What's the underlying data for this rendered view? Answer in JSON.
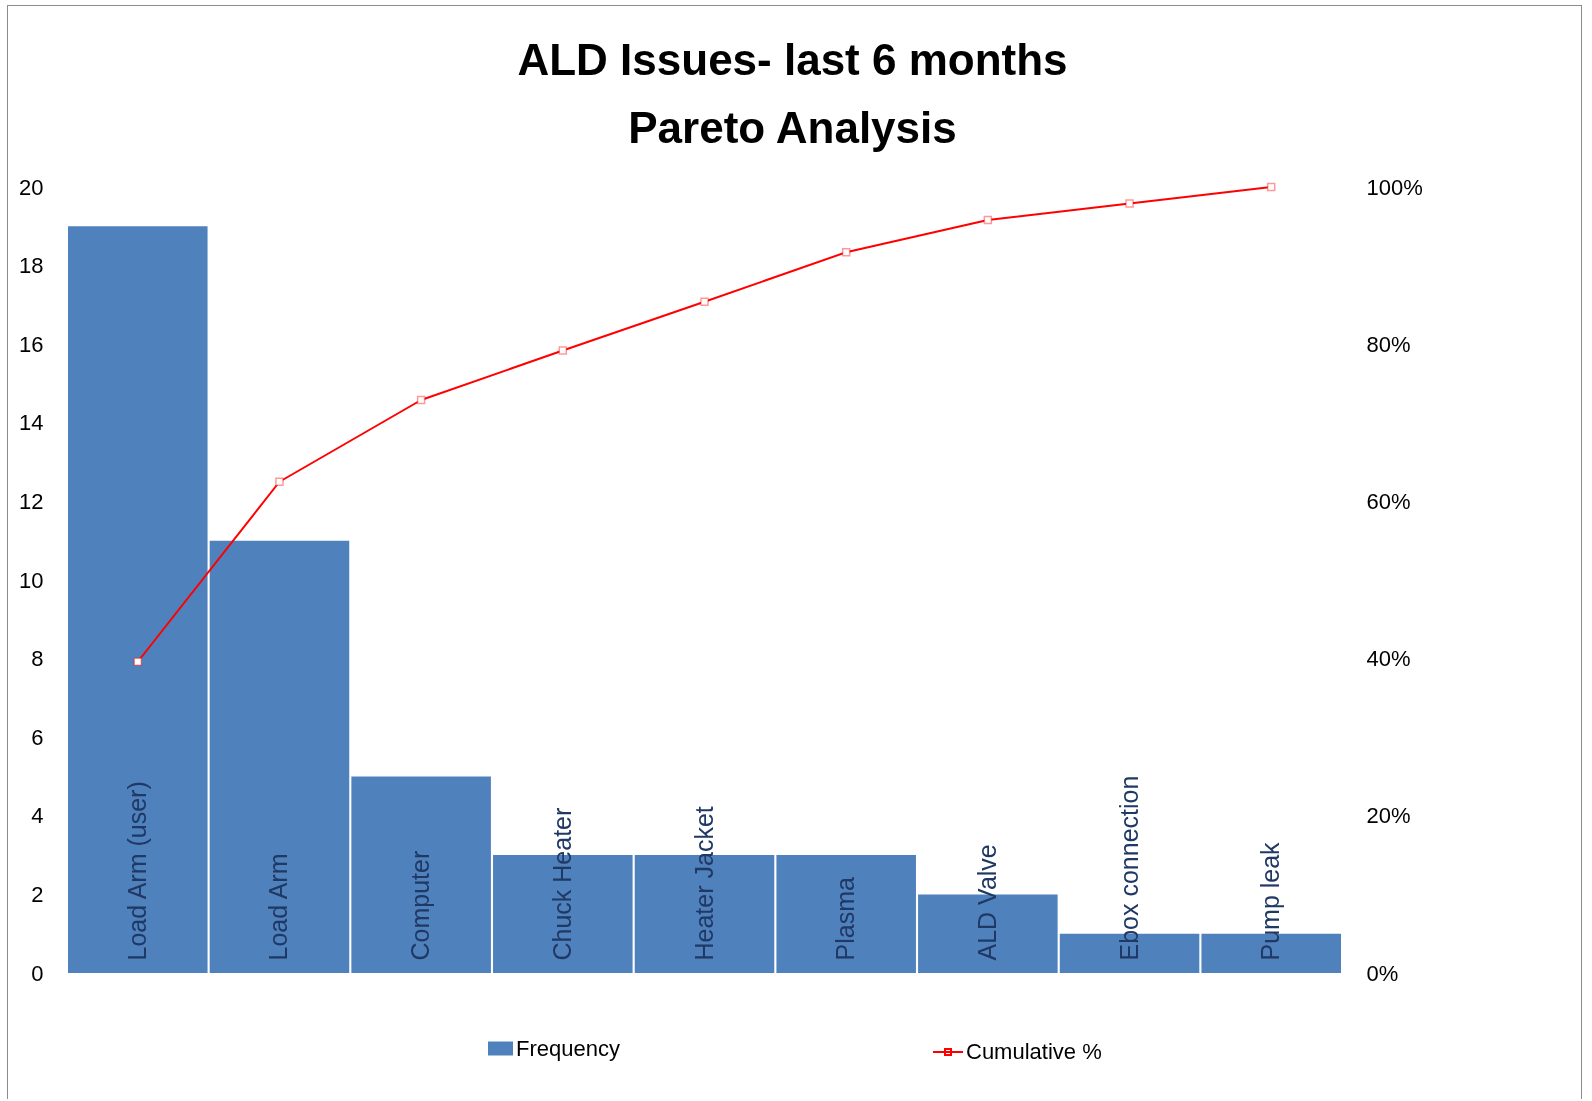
{
  "chart_data": {
    "type": "bar",
    "title": "ALD Issues- last 6 months\nPareto Analysis",
    "categories": [
      "Load Arm (user)",
      "Load Arm",
      "Computer",
      "Chuck Heater",
      "Heater Jacket",
      "Plasma",
      "ALD Valve",
      "Ebox connection",
      "Pump leak"
    ],
    "series": [
      {
        "name": "Frequency",
        "color": "#4f81bd",
        "values": [
          19,
          11,
          5,
          3,
          3,
          3,
          2,
          1,
          1
        ]
      },
      {
        "name": "Cumulative %",
        "type": "line",
        "axis": "y2",
        "color": "#ff0000",
        "values": [
          39.6,
          62.5,
          72.9,
          79.2,
          85.4,
          91.7,
          95.8,
          97.9,
          100
        ]
      }
    ],
    "ylim": [
      0,
      20
    ],
    "yticks": [
      0,
      2,
      4,
      6,
      8,
      10,
      12,
      14,
      16,
      18,
      20
    ],
    "y2lim": [
      0,
      100
    ],
    "y2ticks": [
      {
        "value": 0,
        "label": "0%"
      },
      {
        "value": 20,
        "label": "20%"
      },
      {
        "value": 40,
        "label": "40%"
      },
      {
        "value": 60,
        "label": "60%"
      },
      {
        "value": 80,
        "label": "80%"
      },
      {
        "value": 100,
        "label": "100%"
      }
    ],
    "legend": "bottom",
    "marker": "square",
    "line_style": "solid"
  }
}
